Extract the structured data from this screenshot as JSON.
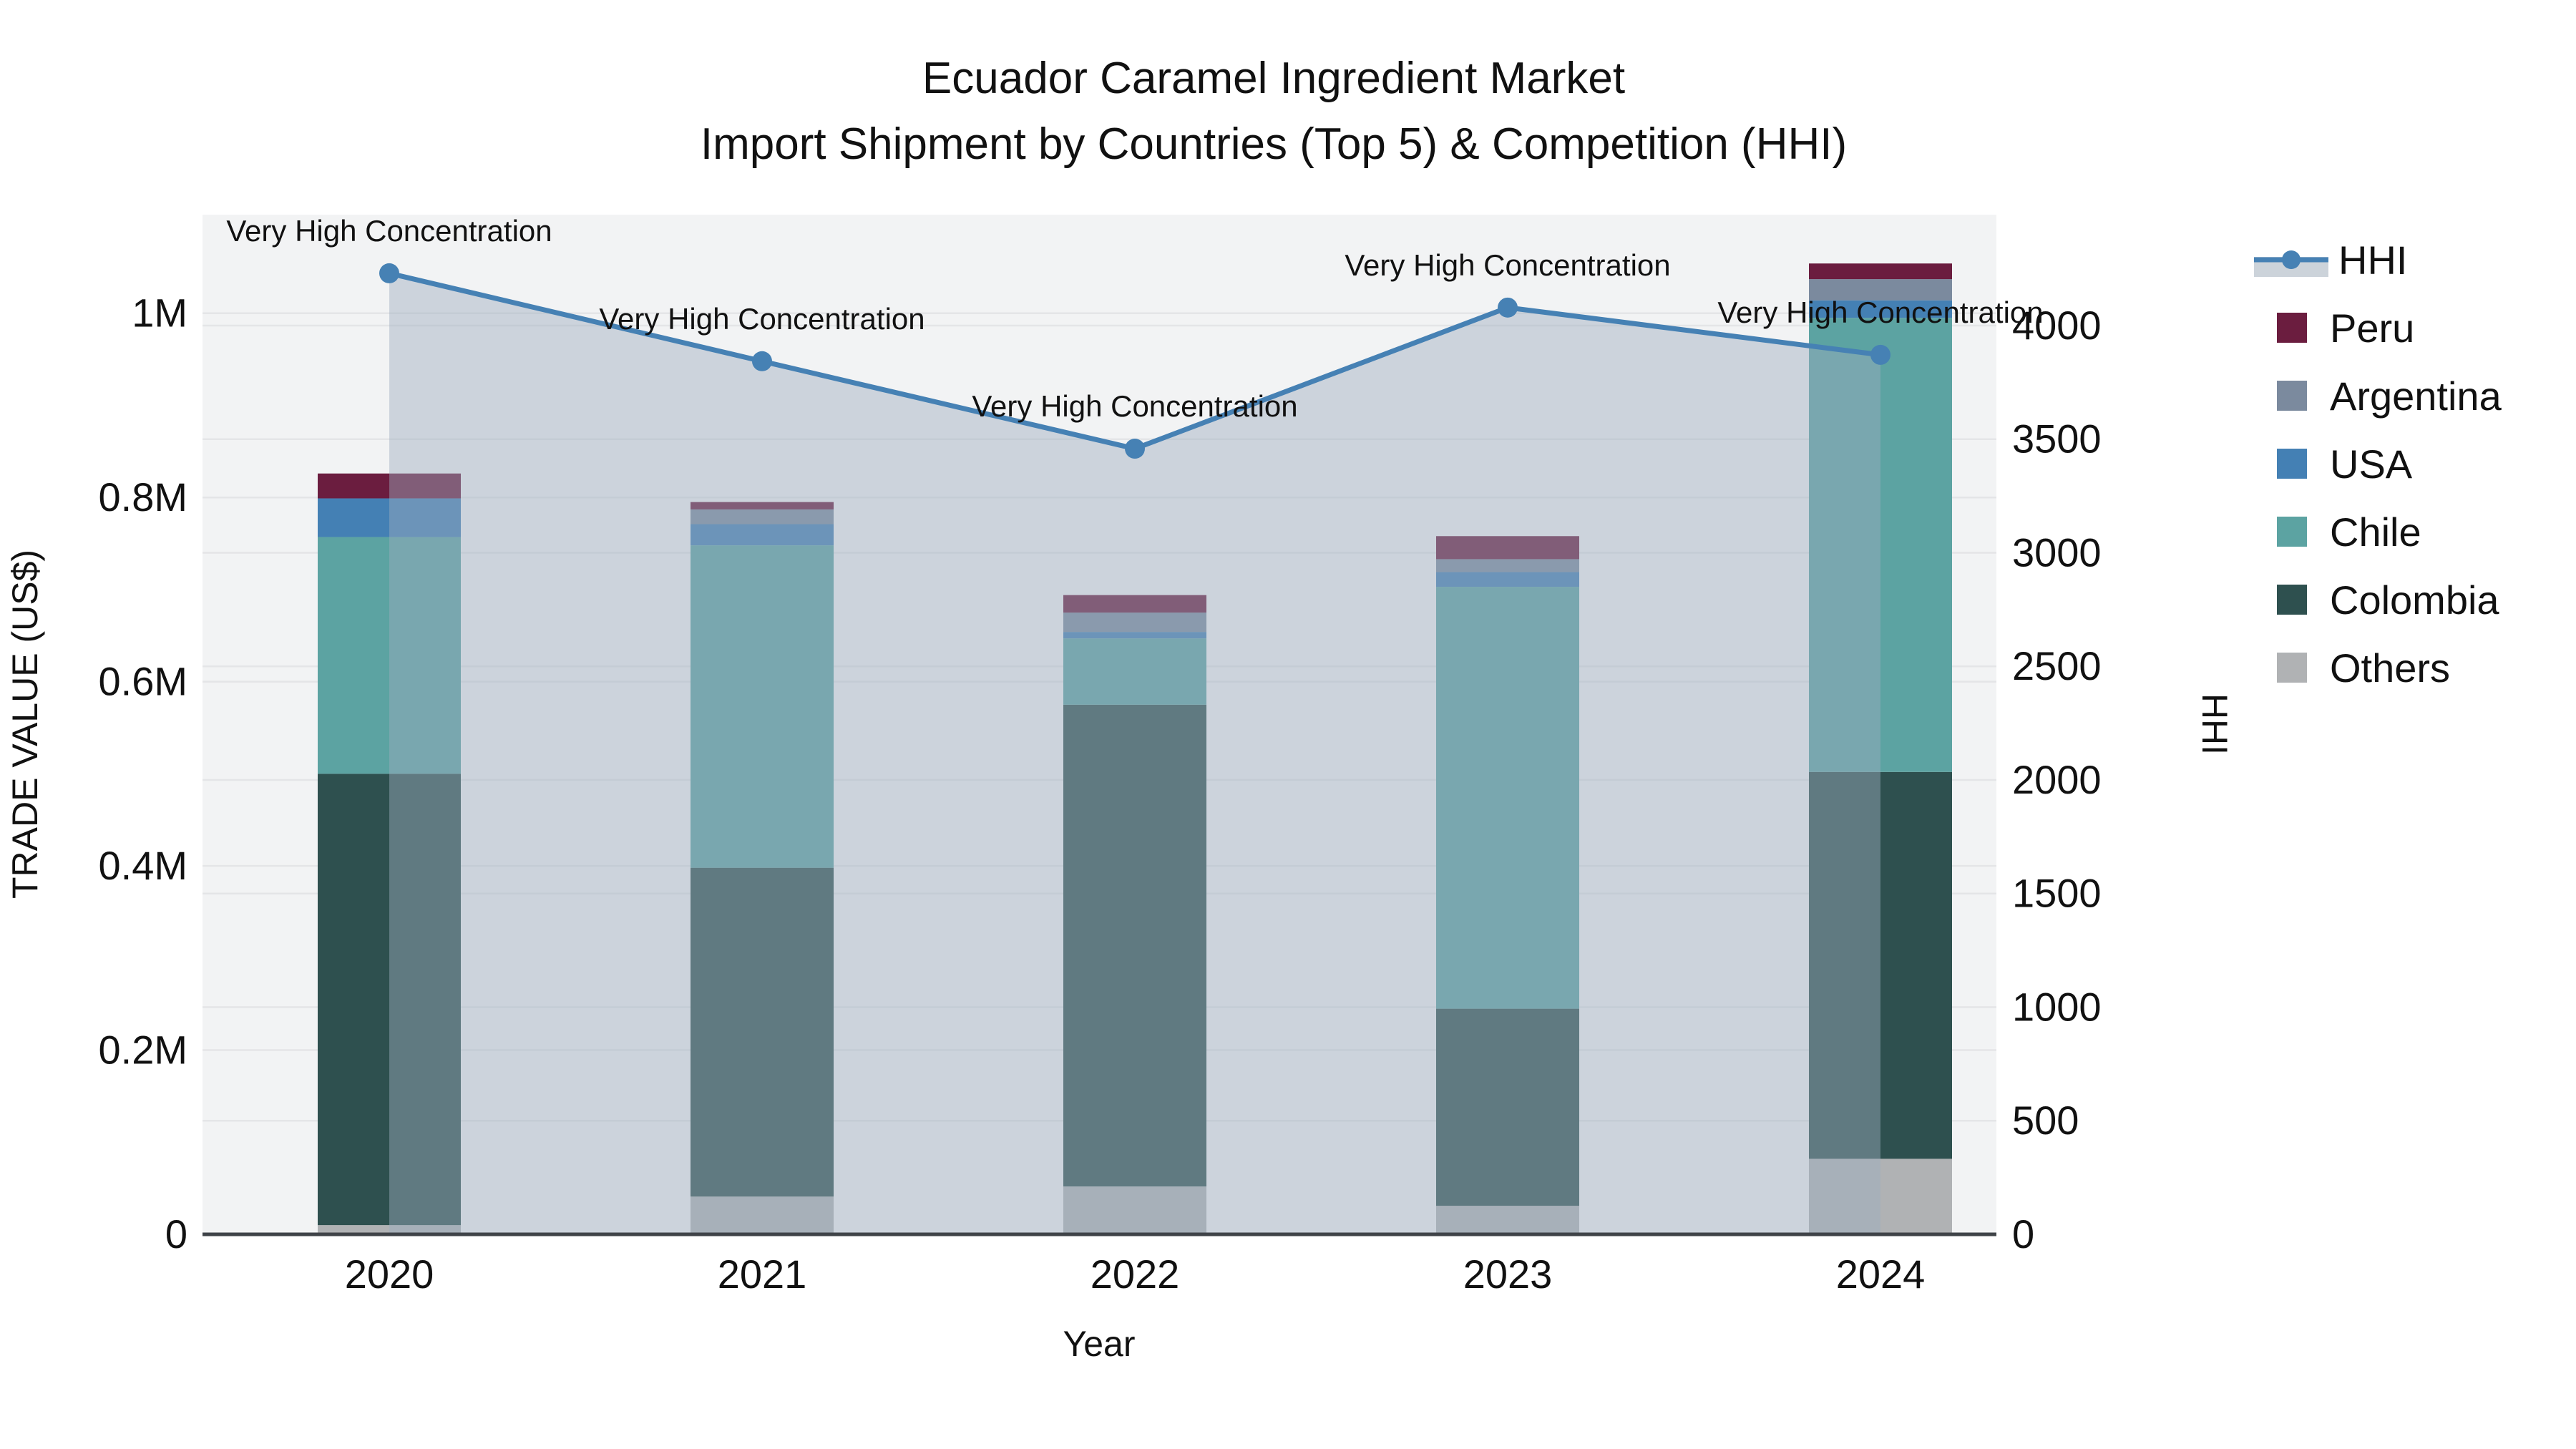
{
  "chart_data": {
    "type": "bar",
    "stacked": true,
    "overlay": "line",
    "title_line1": "Ecuador Caramel Ingredient Market",
    "title_line2": "Import Shipment by Countries (Top 5) & Competition (HHI)",
    "xlabel": "Year",
    "ylabel_left": "TRADE VALUE (US$)",
    "ylabel_right": "HHI",
    "categories": [
      "2020",
      "2021",
      "2022",
      "2023",
      "2024"
    ],
    "series": [
      {
        "name": "Others",
        "color": "#b0b2b4",
        "values": [
          10000,
          41000,
          52000,
          31000,
          82000
        ]
      },
      {
        "name": "Colombia",
        "color": "#2e504f",
        "values": [
          490000,
          357000,
          523000,
          214000,
          420000
        ]
      },
      {
        "name": "Chile",
        "color": "#5ca3a2",
        "values": [
          257000,
          350000,
          72000,
          458000,
          493000
        ]
      },
      {
        "name": "USA",
        "color": "#4480b4",
        "values": [
          42000,
          23000,
          7000,
          16000,
          19000
        ]
      },
      {
        "name": "Argentina",
        "color": "#7b8a9e",
        "values": [
          0,
          16000,
          21000,
          14000,
          23000
        ]
      },
      {
        "name": "Peru",
        "color": "#6b1d3f",
        "values": [
          27000,
          8000,
          19000,
          25000,
          17000
        ]
      }
    ],
    "line_series": {
      "name": "HHI",
      "color": "#4681b4",
      "fill_color": "rgba(158,172,190,0.45)",
      "values": [
        4230,
        3843,
        3458,
        4079,
        3871
      ]
    },
    "annotations": [
      {
        "text": "Very High Concentration",
        "year": "2020"
      },
      {
        "text": "Very High Concentration",
        "year": "2021"
      },
      {
        "text": "Very High Concentration",
        "year": "2022"
      },
      {
        "text": "Very High Concentration",
        "year": "2023"
      },
      {
        "text": "Very High Concentration",
        "year": "2024"
      }
    ],
    "y_left_ticks": [
      {
        "label": "0",
        "value": 0
      },
      {
        "label": "0.2M",
        "value": 200000
      },
      {
        "label": "0.4M",
        "value": 400000
      },
      {
        "label": "0.6M",
        "value": 600000
      },
      {
        "label": "0.8M",
        "value": 800000
      },
      {
        "label": "1M",
        "value": 1000000
      }
    ],
    "y_right_ticks": [
      {
        "label": "0",
        "value": 0
      },
      {
        "label": "500",
        "value": 500
      },
      {
        "label": "1000",
        "value": 1000
      },
      {
        "label": "1500",
        "value": 1500
      },
      {
        "label": "2000",
        "value": 2000
      },
      {
        "label": "2500",
        "value": 2500
      },
      {
        "label": "3000",
        "value": 3000
      },
      {
        "label": "3500",
        "value": 3500
      },
      {
        "label": "4000",
        "value": 4000
      }
    ],
    "ylim_left": [
      0,
      1107000
    ],
    "ylim_right": [
      0,
      4488
    ],
    "grid": true,
    "legend_position": "right",
    "legend_items": [
      {
        "label": "HHI",
        "type": "line",
        "color": "#4681b4",
        "band_color": "#ccd3da"
      },
      {
        "label": "Peru",
        "type": "swatch",
        "color": "#6b1d3f"
      },
      {
        "label": "Argentina",
        "type": "swatch",
        "color": "#7b8a9e"
      },
      {
        "label": "USA",
        "type": "swatch",
        "color": "#4480b4"
      },
      {
        "label": "Chile",
        "type": "swatch",
        "color": "#5ca3a2"
      },
      {
        "label": "Colombia",
        "type": "swatch",
        "color": "#2e504f"
      },
      {
        "label": "Others",
        "type": "swatch",
        "color": "#b0b2b4"
      }
    ],
    "colors": {
      "plot_bg": "#f2f3f4",
      "grid": "#e4e5e7",
      "baseline": "#3f4348",
      "text": "#111111"
    }
  }
}
